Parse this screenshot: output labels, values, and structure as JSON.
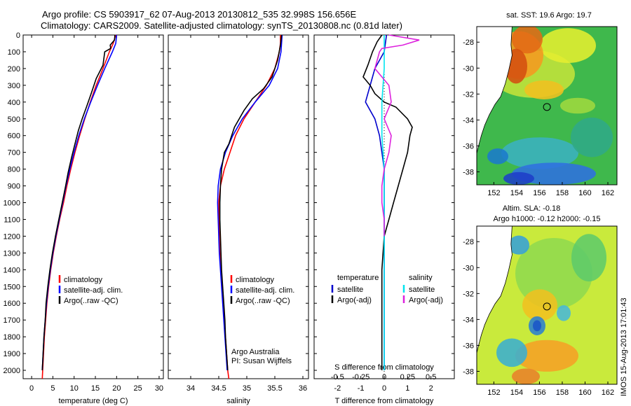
{
  "header": {
    "title_line1": "Argo profile: CS 5903917_62 07-Aug-2013 20130812_535 32.998S 156.656E",
    "title_line2": "Climatology: CARS2009. Satellite-adjusted climatology: synTS_20130808.nc (0.81d later)"
  },
  "colors": {
    "climatology": "#ff0000",
    "satellite": "#0000ff",
    "argo": "#000000",
    "temp_satellite": "#0000cc",
    "sal_satellite": "#00e5ee",
    "sal_argo": "#dd22dd"
  },
  "chart_data": [
    {
      "id": "temperature",
      "type": "line",
      "xlabel": "temperature (deg C)",
      "ylabel": "",
      "xlim": [
        -2,
        31
      ],
      "ylim": [
        2050,
        0
      ],
      "x_ticks": [
        0,
        5,
        10,
        15,
        20,
        25,
        30
      ],
      "y_ticks": [
        0,
        100,
        200,
        300,
        400,
        500,
        600,
        700,
        800,
        900,
        1000,
        1100,
        1200,
        1300,
        1400,
        1500,
        1600,
        1700,
        1800,
        1900,
        2000
      ],
      "legend": [
        "climatology",
        "satellite-adj. clim.",
        "Argo(..raw -QC)"
      ],
      "series": [
        {
          "name": "climatology",
          "color": "#ff0000",
          "points": [
            [
              19.8,
              0
            ],
            [
              19.2,
              50
            ],
            [
              18.3,
              100
            ],
            [
              16.8,
              200
            ],
            [
              15.2,
              300
            ],
            [
              13.8,
              400
            ],
            [
              12.5,
              500
            ],
            [
              11.3,
              600
            ],
            [
              10.2,
              700
            ],
            [
              9.2,
              800
            ],
            [
              8.3,
              900
            ],
            [
              7.5,
              1000
            ],
            [
              6.6,
              1100
            ],
            [
              5.8,
              1200
            ],
            [
              5.1,
              1300
            ],
            [
              4.5,
              1400
            ],
            [
              4.0,
              1500
            ],
            [
              3.6,
              1600
            ],
            [
              3.3,
              1700
            ],
            [
              3.0,
              1800
            ],
            [
              2.8,
              1900
            ],
            [
              2.6,
              2000
            ],
            [
              2.5,
              2050
            ]
          ]
        },
        {
          "name": "satellite-adj. clim.",
          "color": "#0000ff",
          "points": [
            [
              20.0,
              0
            ],
            [
              19.8,
              50
            ],
            [
              19.0,
              100
            ],
            [
              17.2,
              200
            ],
            [
              15.5,
              300
            ],
            [
              13.9,
              400
            ],
            [
              12.4,
              500
            ],
            [
              11.1,
              600
            ],
            [
              10.0,
              700
            ],
            [
              9.0,
              800
            ],
            [
              8.1,
              900
            ],
            [
              7.3,
              1000
            ],
            [
              6.5,
              1100
            ],
            [
              5.7,
              1200
            ],
            [
              5.0,
              1300
            ],
            [
              4.4,
              1400
            ],
            [
              3.9,
              1500
            ],
            [
              3.5,
              1600
            ],
            [
              3.2,
              1700
            ],
            [
              2.9,
              1800
            ],
            [
              2.7,
              1900
            ],
            [
              2.5,
              2000
            ]
          ]
        },
        {
          "name": "Argo(..raw -QC)",
          "color": "#000000",
          "points": [
            [
              19.6,
              0
            ],
            [
              19.5,
              30
            ],
            [
              18.5,
              60
            ],
            [
              18.6,
              80
            ],
            [
              17.2,
              100
            ],
            [
              16.8,
              180
            ],
            [
              15.2,
              260
            ],
            [
              14.0,
              350
            ],
            [
              12.9,
              430
            ],
            [
              11.9,
              500
            ],
            [
              11.0,
              570
            ],
            [
              10.2,
              650
            ],
            [
              9.4,
              730
            ],
            [
              8.6,
              820
            ],
            [
              8.0,
              900
            ],
            [
              7.2,
              1000
            ],
            [
              6.4,
              1100
            ],
            [
              5.6,
              1200
            ],
            [
              4.9,
              1300
            ],
            [
              4.3,
              1400
            ],
            [
              3.8,
              1500
            ],
            [
              3.4,
              1600
            ],
            [
              3.2,
              1700
            ],
            [
              2.9,
              1800
            ],
            [
              2.7,
              1900
            ],
            [
              2.5,
              2000
            ]
          ]
        }
      ]
    },
    {
      "id": "salinity",
      "type": "line",
      "xlabel": "salinity",
      "ylabel": "",
      "xlim": [
        33.6,
        36.1
      ],
      "ylim": [
        2050,
        0
      ],
      "x_ticks": [
        34,
        34.5,
        35,
        35.5,
        36
      ],
      "legend": [
        "climatology",
        "satellite-adj. clim.",
        "Argo(..raw -QC)"
      ],
      "annotation": [
        "Argo Australia",
        "PI: Susan Wijffels"
      ],
      "series": [
        {
          "name": "climatology",
          "color": "#ff0000",
          "points": [
            [
              35.6,
              0
            ],
            [
              35.6,
              50
            ],
            [
              35.58,
              100
            ],
            [
              35.5,
              200
            ],
            [
              35.35,
              300
            ],
            [
              35.15,
              400
            ],
            [
              34.95,
              500
            ],
            [
              34.8,
              600
            ],
            [
              34.7,
              700
            ],
            [
              34.6,
              800
            ],
            [
              34.53,
              900
            ],
            [
              34.5,
              1000
            ],
            [
              34.5,
              1100
            ],
            [
              34.51,
              1200
            ],
            [
              34.52,
              1300
            ],
            [
              34.54,
              1400
            ],
            [
              34.56,
              1500
            ],
            [
              34.58,
              1600
            ],
            [
              34.6,
              1700
            ],
            [
              34.62,
              1800
            ],
            [
              34.64,
              1900
            ],
            [
              34.66,
              2000
            ],
            [
              34.68,
              2050
            ]
          ]
        },
        {
          "name": "satellite-adj. clim.",
          "color": "#0000ff",
          "points": [
            [
              35.63,
              0
            ],
            [
              35.62,
              50
            ],
            [
              35.61,
              100
            ],
            [
              35.55,
              200
            ],
            [
              35.4,
              300
            ],
            [
              35.15,
              400
            ],
            [
              34.92,
              500
            ],
            [
              34.75,
              600
            ],
            [
              34.62,
              700
            ],
            [
              34.53,
              800
            ],
            [
              34.49,
              900
            ],
            [
              34.48,
              1000
            ],
            [
              34.49,
              1100
            ],
            [
              34.5,
              1200
            ],
            [
              34.51,
              1300
            ],
            [
              34.53,
              1400
            ],
            [
              34.55,
              1500
            ],
            [
              34.57,
              1600
            ],
            [
              34.59,
              1700
            ],
            [
              34.61,
              1800
            ],
            [
              34.63,
              1900
            ],
            [
              34.65,
              2000
            ]
          ]
        },
        {
          "name": "Argo(..raw -QC)",
          "color": "#000000",
          "points": [
            [
              35.62,
              0
            ],
            [
              35.6,
              60
            ],
            [
              35.55,
              150
            ],
            [
              35.45,
              250
            ],
            [
              35.3,
              320
            ],
            [
              35.1,
              380
            ],
            [
              34.95,
              450
            ],
            [
              34.78,
              550
            ],
            [
              34.68,
              650
            ],
            [
              34.6,
              700
            ],
            [
              34.55,
              800
            ],
            [
              34.53,
              900
            ],
            [
              34.52,
              1000
            ],
            [
              34.52,
              1100
            ],
            [
              34.53,
              1200
            ],
            [
              34.54,
              1300
            ],
            [
              34.55,
              1400
            ],
            [
              34.57,
              1500
            ],
            [
              34.59,
              1600
            ],
            [
              34.61,
              1700
            ],
            [
              34.62,
              1800
            ],
            [
              34.64,
              1900
            ],
            [
              34.66,
              2000
            ]
          ]
        }
      ]
    },
    {
      "id": "difference",
      "type": "line",
      "xlabel": "T difference from climatology",
      "xlabel_top": "S difference from climatology",
      "ylabel": "",
      "xlim": [
        -3,
        3
      ],
      "ylim": [
        2050,
        0
      ],
      "x_ticks": [
        -2,
        -1,
        0,
        1,
        2
      ],
      "x2_ticks": [
        -0.5,
        -0.25,
        0,
        0.25,
        0.5
      ],
      "x2_tick_positions": [
        -2,
        -1,
        0,
        1,
        2
      ],
      "legend_left_title": "temperature",
      "legend_right_title": "salinity",
      "legend_left": [
        "satellite",
        "Argo(-adj)"
      ],
      "legend_right": [
        "satellite",
        "Argo(-adj)"
      ],
      "series": [
        {
          "name": "T satellite",
          "color": "#0000cc",
          "points": [
            [
              0.1,
              0
            ],
            [
              0.0,
              100
            ],
            [
              -0.4,
              200
            ],
            [
              -0.6,
              300
            ],
            [
              -0.8,
              400
            ],
            [
              -0.4,
              500
            ],
            [
              -0.2,
              600
            ],
            [
              -0.1,
              700
            ],
            [
              0.0,
              800
            ],
            [
              0.0,
              1000
            ],
            [
              0.0,
              1500
            ],
            [
              0.0,
              2000
            ]
          ]
        },
        {
          "name": "T Argo(-adj)",
          "color": "#000000",
          "points": [
            [
              -0.1,
              0
            ],
            [
              -0.3,
              40
            ],
            [
              -0.5,
              100
            ],
            [
              -0.7,
              180
            ],
            [
              -0.9,
              250
            ],
            [
              -0.6,
              300
            ],
            [
              -0.4,
              350
            ],
            [
              0.0,
              400
            ],
            [
              0.5,
              430
            ],
            [
              1.0,
              500
            ],
            [
              1.2,
              550
            ],
            [
              1.1,
              600
            ],
            [
              1.0,
              700
            ],
            [
              0.8,
              800
            ],
            [
              0.6,
              900
            ],
            [
              0.4,
              1000
            ],
            [
              0.2,
              1100
            ],
            [
              0.0,
              1200
            ],
            [
              -0.1,
              1400
            ],
            [
              -0.1,
              1600
            ],
            [
              -0.1,
              1800
            ],
            [
              -0.1,
              2000
            ]
          ]
        },
        {
          "name": "S satellite",
          "color": "#00e5ee",
          "points": [
            [
              0.0,
              0
            ],
            [
              0.0,
              200
            ],
            [
              -0.1,
              400
            ],
            [
              -0.1,
              600
            ],
            [
              0.0,
              800
            ],
            [
              0.0,
              1200
            ],
            [
              0.0,
              2000
            ]
          ]
        },
        {
          "name": "S Argo(-adj)",
          "color": "#dd22dd",
          "points": [
            [
              0.2,
              0
            ],
            [
              1.5,
              30
            ],
            [
              0.8,
              60
            ],
            [
              -0.1,
              80
            ],
            [
              -0.2,
              100
            ],
            [
              -0.4,
              200
            ],
            [
              0.2,
              300
            ],
            [
              0.3,
              400
            ],
            [
              0.0,
              500
            ],
            [
              0.3,
              600
            ],
            [
              0.2,
              700
            ],
            [
              0.0,
              800
            ],
            [
              -0.1,
              900
            ],
            [
              -0.1,
              1000
            ],
            [
              0.0,
              1100
            ],
            [
              0.0,
              1200
            ]
          ]
        }
      ]
    }
  ],
  "maps": {
    "sst_title": "sat. SST: 19.6 Argo: 19.7",
    "sla_title_line1": "Altim. SLA: -0.18",
    "sla_title_line2": "Argo h1000: -0.12 h2000: -0.15",
    "lat_ticks": [
      -28,
      -30,
      -32,
      -34,
      -36,
      -38
    ],
    "lon_ticks": [
      152,
      154,
      156,
      158,
      160,
      162
    ],
    "lon_range": [
      150.5,
      162.8
    ],
    "lat_range": [
      -39.0,
      -26.8
    ],
    "profile_position": [
      156.656,
      -32.998
    ]
  },
  "footer": {
    "stamp": "IMOS 15-Aug-2013 17:01:43"
  }
}
